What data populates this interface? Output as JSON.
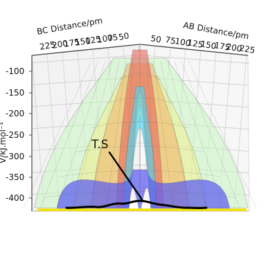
{
  "chart_data": {
    "type": "surface",
    "title": "",
    "labels": {
      "x_axis": "AB Distance/pm",
      "y_axis": "BC Distance/pm",
      "z_axis": "V/kJ.mol⁻¹"
    },
    "x_ticks": [
      "50",
      "75",
      "100",
      "125",
      "150",
      "175",
      "200",
      "225"
    ],
    "y_ticks": [
      "50",
      "75",
      "100",
      "125",
      "150",
      "175",
      "200",
      "225"
    ],
    "z_ticks": [
      "-100",
      "-150",
      "-200",
      "-250",
      "-300",
      "-350",
      "-400"
    ],
    "z_range": [
      -435,
      -80
    ],
    "x_range": [
      50,
      225
    ],
    "y_range": [
      50,
      225
    ],
    "annotation": {
      "text": "T.S"
    },
    "surface_colormap": [
      "#3b4cc0",
      "#5b6be0",
      "#47d3ff",
      "#7cf3b0",
      "#b9f06b",
      "#f6d35d",
      "#f49a4f",
      "#e3574c"
    ],
    "trajectory": {
      "color": "#000000"
    },
    "grid": true
  }
}
